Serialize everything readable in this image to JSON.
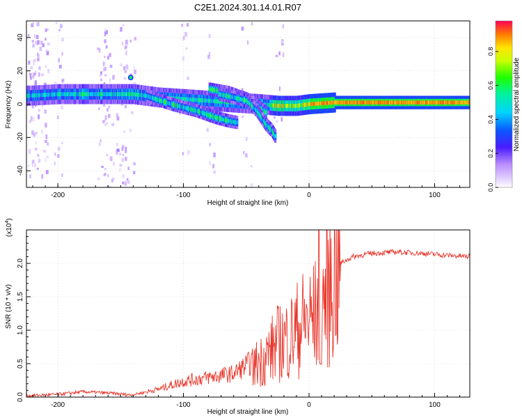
{
  "figure": {
    "title": "C2E1.2024.301.14.01.R07"
  },
  "chart_data": [
    {
      "type": "heatmap",
      "xlabel": "Height of straight line (km)",
      "ylabel": "Frequency (Hz)",
      "xlim": [
        -225,
        128
      ],
      "ylim": [
        -50,
        50
      ],
      "xticks": [
        -200,
        -100,
        0,
        100
      ],
      "yticks": [
        40,
        20,
        0,
        -20,
        -40
      ],
      "grid": true,
      "colorbar": {
        "label": "Normalized spectral amplitude",
        "range": [
          0.0,
          0.98
        ],
        "ticks": [
          0.0,
          0.2,
          0.4,
          0.6,
          0.8
        ]
      },
      "traces": [
        {
          "x": [
            -225,
            -200,
            -160,
            -140,
            -120,
            -100,
            -80,
            -60,
            -40,
            -25,
            -10,
            0,
            20,
            60,
            100,
            128
          ],
          "freq": [
            5,
            6,
            6,
            6,
            4,
            3,
            2,
            1,
            0,
            -1,
            -1,
            0,
            1,
            1,
            1,
            1
          ]
        },
        {
          "x": [
            -130,
            -110,
            -90,
            -75,
            -65,
            -58
          ],
          "freq": [
            5,
            0,
            -4,
            -8,
            -10,
            -11
          ]
        },
        {
          "x": [
            -80,
            -65,
            -50,
            -40,
            -35
          ],
          "freq": [
            9,
            7,
            3,
            -2,
            -5
          ]
        },
        {
          "x": [
            -72,
            -60,
            -50,
            -42,
            -35,
            -30,
            -27
          ],
          "freq": [
            6,
            4,
            2,
            -4,
            -12,
            -16,
            -20
          ]
        }
      ],
      "peak": {
        "x": -142,
        "freq": 16
      }
    },
    {
      "type": "line",
      "xlabel": "Height of straight line (km)",
      "ylabel": "SNR (10 * v/v)",
      "y_multiplier": "x10^4",
      "xlim": [
        -225,
        128
      ],
      "ylim": [
        0,
        2.5
      ],
      "xticks": [
        -200,
        -100,
        0,
        100
      ],
      "yticks": [
        0.0,
        0.5,
        1.0,
        1.5,
        2.0
      ],
      "grid": true,
      "series": [
        {
          "color": "#e8372c",
          "x": [
            -225,
            -200,
            -180,
            -160,
            -140,
            -120,
            -100,
            -80,
            -60,
            -45,
            -35,
            -25,
            -15,
            -5,
            5,
            15,
            25,
            35,
            50,
            70,
            90,
            110,
            128
          ],
          "y": [
            0.02,
            0.04,
            0.08,
            0.06,
            0.03,
            0.1,
            0.2,
            0.25,
            0.3,
            0.45,
            0.6,
            0.8,
            0.9,
            1.1,
            1.2,
            1.6,
            2.0,
            2.1,
            2.15,
            2.17,
            2.15,
            2.12,
            2.1
          ]
        }
      ]
    }
  ]
}
